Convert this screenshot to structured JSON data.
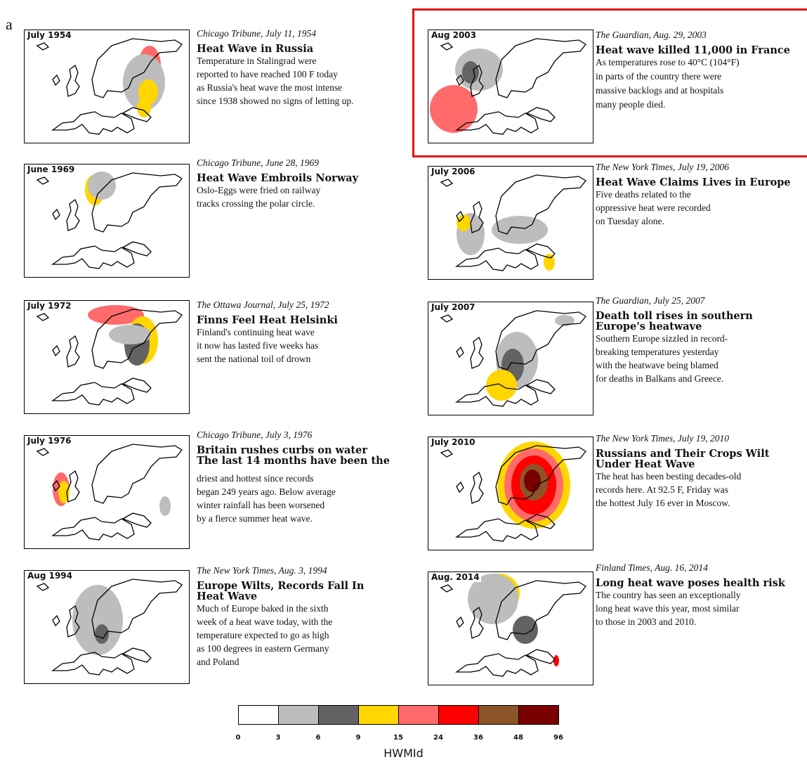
{
  "figure": {
    "panel_letter": "a",
    "legend_title": "HWMId"
  },
  "legend": {
    "colors": [
      "#ffffff",
      "#bdbdbd",
      "#636363",
      "#ffd600",
      "#ff6b6b",
      "#ff0000",
      "#8c5529",
      "#7a0000"
    ],
    "ticks": [
      "0",
      "3",
      "6",
      "9",
      "15",
      "24",
      "36",
      "48",
      "96"
    ]
  },
  "left_column": [
    {
      "map_label": "July 1954",
      "source": "Chicago Tribune, July 11, 1954",
      "headline": "Heat Wave in Russia",
      "body": "Temperature in Stalingrad were\nreported to have reached 100 F today\nas Russia's heat wave the most intense\nsince 1938 showed no signs of letting up."
    },
    {
      "map_label": "June 1969",
      "source": "Chicago Tribune, June 28, 1969",
      "headline": "Heat Wave Embroils Norway",
      "body": "Oslo-Eggs were fried on railway\ntracks crossing the polar circle."
    },
    {
      "map_label": "July 1972",
      "source": "The Ottawa Journal, July 25, 1972",
      "headline": "Finns Feel Heat Helsinki",
      "body": "Finland's continuing heat wave\nit now has lasted five weeks has\nsent the national toil of drown"
    },
    {
      "map_label": "July 1976",
      "source": "Chicago Tribune, July 3, 1976",
      "headline": "Britain rushes curbs on water\nThe last 14 months have been the",
      "body": "driest and hottest since records\nbegan 249 years ago. Below average\nwinter rainfall has been worsened\nby a fierce summer heat wave."
    },
    {
      "map_label": "Aug 1994",
      "source": "The New York Times, Aug. 3, 1994",
      "headline": "Europe Wilts, Records Fall In\nHeat Wave",
      "body": "Much of Europe baked in the sixth\nweek of a heat wave today, with the\ntemperature expected to go as high\n as 100 degrees in eastern Germany\nand Poland"
    }
  ],
  "right_column": [
    {
      "map_label": "Aug 2003",
      "source": "The Guardian, Aug. 29, 2003",
      "headline": "Heat wave killed 11,000 in France",
      "body": "As temperatures rose to 40°C (104°F)\nin parts of the country there were\nmassive backlogs and at hospitals\nmany people died."
    },
    {
      "map_label": "July 2006",
      "source": "The New York Times, July 19, 2006",
      "headline": "Heat Wave Claims Lives in Europe",
      "body": "Five deaths related to the\noppressive heat were recorded\non Tuesday alone."
    },
    {
      "map_label": "July 2007",
      "source": "The Guardian, July 25, 2007",
      "headline": "Death toll rises in southern\nEurope's heatwave",
      "body": "Southern Europe sizzled in record-\nbreaking temperatures yesterday\nwith the heatwave being blamed\nfor deaths in Balkans and Greece."
    },
    {
      "map_label": "July 2010",
      "source": "The New York Times, July 19, 2010",
      "headline": "Russians and Their Crops Wilt\nUnder Heat Wave",
      "body": "The heat has been besting decades-old\nrecords here. At 92.5 F, Friday was\nthe hottest July 16 ever in Moscow."
    },
    {
      "map_label": "Aug. 2014",
      "source": "Finland Times, Aug. 16, 2014",
      "headline": "Long heat wave poses health risk",
      "body": "The country has seen an exceptionally\nlong heat wave this year, most similar\nto those in 2003 and 2010."
    }
  ]
}
